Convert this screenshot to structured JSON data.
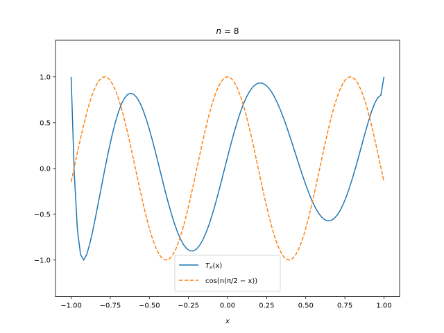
{
  "chart_data": {
    "type": "line",
    "title": "n = 8",
    "title_parts": {
      "var": "n",
      "rest": " = 8"
    },
    "xlabel": "x",
    "ylabel": "",
    "xlim": [
      -1.1,
      1.1
    ],
    "ylim": [
      -1.4,
      1.4
    ],
    "xticks": [
      -1.0,
      -0.75,
      -0.5,
      -0.25,
      0.0,
      0.25,
      0.5,
      0.75,
      1.0
    ],
    "xtick_labels": [
      "−1.00",
      "−0.75",
      "−0.50",
      "−0.25",
      "0.00",
      "0.25",
      "0.50",
      "0.75",
      "1.00"
    ],
    "yticks": [
      -1.0,
      -0.5,
      0.0,
      0.5,
      1.0
    ],
    "ytick_labels": [
      "−1.0",
      "−0.5",
      "0.0",
      "0.5",
      "1.0"
    ],
    "grid": false,
    "legend_position": "lower center",
    "series": [
      {
        "name": "Tₙ(x)",
        "legend": {
          "main": "T",
          "sub": "n",
          "rest": "(x)"
        },
        "color": "#1f77b4",
        "style": "solid",
        "x": [
          -1.0,
          -0.98,
          -0.96,
          -0.94,
          -0.92,
          -0.9,
          -0.88,
          -0.86,
          -0.84,
          -0.82,
          -0.8,
          -0.78,
          -0.76,
          -0.74,
          -0.72,
          -0.7,
          -0.68,
          -0.66,
          -0.64,
          -0.62,
          -0.6,
          -0.58,
          -0.56,
          -0.54,
          -0.52,
          -0.5,
          -0.48,
          -0.46,
          -0.44,
          -0.42,
          -0.4,
          -0.38,
          -0.36,
          -0.34,
          -0.32,
          -0.3,
          -0.28,
          -0.26,
          -0.24,
          -0.22,
          -0.2,
          -0.18,
          -0.16,
          -0.14,
          -0.12,
          -0.1,
          -0.08,
          -0.06,
          -0.04,
          -0.02,
          0.0,
          0.02,
          0.04,
          0.06,
          0.08,
          0.1,
          0.12,
          0.14,
          0.16,
          0.18,
          0.2,
          0.22,
          0.24,
          0.26,
          0.28,
          0.3,
          0.32,
          0.34,
          0.36,
          0.38,
          0.4,
          0.42,
          0.44,
          0.46,
          0.48,
          0.5,
          0.52,
          0.54,
          0.56,
          0.58,
          0.6,
          0.62,
          0.64,
          0.66,
          0.68,
          0.7,
          0.72,
          0.74,
          0.76,
          0.78,
          0.8,
          0.82,
          0.84,
          0.86,
          0.88,
          0.9,
          0.92,
          0.94,
          0.96,
          0.98,
          1.0
        ],
        "y": [
          1.0,
          -0.0561,
          -0.6664,
          -0.9403,
          -0.9999,
          -0.9394,
          -0.8172,
          -0.6663,
          -0.4966,
          -0.3207,
          -0.1432,
          0.0309,
          0.1969,
          0.3505,
          0.4874,
          0.6038,
          0.6968,
          0.7645,
          0.806,
          0.821,
          0.8101,
          0.7744,
          0.7158,
          0.6366,
          0.5395,
          0.4276,
          0.3041,
          0.1723,
          0.0356,
          -0.1026,
          -0.2384,
          -0.3686,
          -0.4899,
          -0.5996,
          -0.6952,
          -0.7744,
          -0.8357,
          -0.8777,
          -0.8998,
          -0.9014,
          -0.8827,
          -0.8441,
          -0.7867,
          -0.7117,
          -0.6209,
          -0.5161,
          -0.3999,
          -0.2749,
          -0.1437,
          -0.0094,
          0.125,
          0.2563,
          0.3815,
          0.4981,
          0.6038,
          0.6968,
          0.7756,
          0.8391,
          0.8868,
          0.9181,
          0.9331,
          0.9321,
          0.9156,
          0.8842,
          0.8389,
          0.7806,
          0.7106,
          0.6302,
          0.5409,
          0.4444,
          0.3425,
          0.237,
          0.1302,
          0.024,
          -0.0794,
          -0.1779,
          -0.2695,
          -0.3521,
          -0.4239,
          -0.4832,
          -0.5284,
          -0.5584,
          -0.5723,
          -0.5693,
          -0.5493,
          -0.5121,
          -0.4584,
          -0.3888,
          -0.3046,
          -0.2076,
          -0.0995,
          0.0174,
          0.1405,
          0.2665,
          0.3913,
          0.5104,
          0.6183,
          0.7081,
          0.7717,
          0.7996,
          1.0
        ]
      },
      {
        "name": "cos(n(π/2 − x))",
        "legend": {
          "text": "cos(n(π/2 − x))"
        },
        "color": "#ff7f0e",
        "style": "dashed",
        "x": [],
        "y": []
      }
    ]
  }
}
